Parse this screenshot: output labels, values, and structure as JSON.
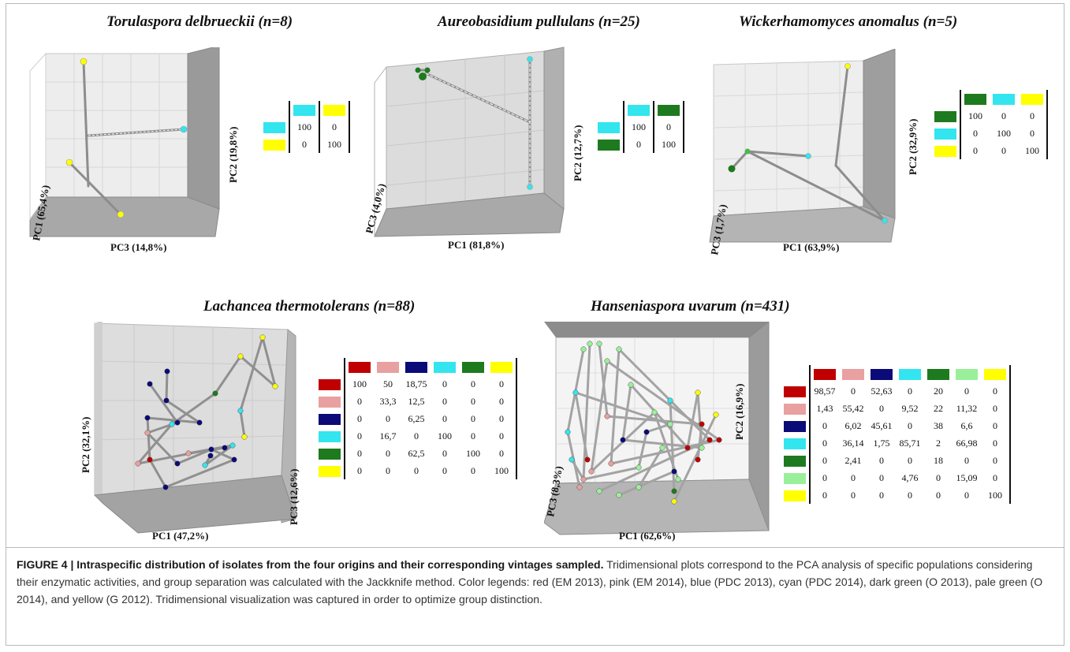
{
  "colors": {
    "red": "#c00000",
    "pink": "#e8a0a0",
    "blue": "#0a0a78",
    "cyan": "#33e5ee",
    "dark_green": "#1e7a1e",
    "pale_green": "#9af09a",
    "yellow": "#ffff00"
  },
  "panels": [
    {
      "title": "Torulaspora delbrueckii (n=8)",
      "axes": [
        "PC1 (65,4%)",
        "PC3 (14,8%)",
        "PC2 (19,8%)"
      ],
      "table": {
        "colors": [
          "cyan",
          "yellow"
        ],
        "rows": [
          [
            "100",
            "0"
          ],
          [
            "0",
            "100"
          ]
        ]
      }
    },
    {
      "title": "Aureobasidium pullulans (n=25)",
      "axes": [
        "PC3 (4,0%)",
        "PC1 (81,8%)",
        "PC2 (12,7%)"
      ],
      "table": {
        "colors": [
          "cyan",
          "dark_green"
        ],
        "rows": [
          [
            "100",
            "0"
          ],
          [
            "0",
            "100"
          ]
        ]
      }
    },
    {
      "title": "Wickerhamomyces anomalus (n=5)",
      "axes": [
        "PC3 (1,7%)",
        "PC1 (63,9%)",
        "PC2 (32,9%)"
      ],
      "table": {
        "colors": [
          "dark_green",
          "cyan",
          "yellow"
        ],
        "rows": [
          [
            "100",
            "0",
            "0"
          ],
          [
            "0",
            "100",
            "0"
          ],
          [
            "0",
            "0",
            "100"
          ]
        ]
      }
    },
    {
      "title": "Lachancea thermotolerans (n=88)",
      "axes": [
        "PC2 (32,1%)",
        "PC1 (47,2%)",
        "PC3 (12,6%)"
      ],
      "table": {
        "colors": [
          "red",
          "pink",
          "blue",
          "cyan",
          "dark_green",
          "yellow"
        ],
        "rows": [
          [
            "100",
            "50",
            "18,75",
            "0",
            "0",
            "0"
          ],
          [
            "0",
            "33,3",
            "12,5",
            "0",
            "0",
            "0"
          ],
          [
            "0",
            "0",
            "6,25",
            "0",
            "0",
            "0"
          ],
          [
            "0",
            "16,7",
            "0",
            "100",
            "0",
            "0"
          ],
          [
            "0",
            "0",
            "62,5",
            "0",
            "100",
            "0"
          ],
          [
            "0",
            "0",
            "0",
            "0",
            "0",
            "100"
          ]
        ]
      }
    },
    {
      "title": "Hanseniaspora uvarum (n=431)",
      "axes": [
        "PC3 (8,3%)",
        "PC1 (62,6%)",
        "PC2 (16,9%)"
      ],
      "table": {
        "colors": [
          "red",
          "pink",
          "blue",
          "cyan",
          "dark_green",
          "pale_green",
          "yellow"
        ],
        "rows": [
          [
            "98,57",
            "0",
            "52,63",
            "0",
            "20",
            "0",
            "0"
          ],
          [
            "1,43",
            "55,42",
            "0",
            "9,52",
            "22",
            "11,32",
            "0"
          ],
          [
            "0",
            "6,02",
            "45,61",
            "0",
            "38",
            "6,6",
            "0"
          ],
          [
            "0",
            "36,14",
            "1,75",
            "85,71",
            "2",
            "66,98",
            "0"
          ],
          [
            "0",
            "2,41",
            "0",
            "0",
            "18",
            "0",
            "0"
          ],
          [
            "0",
            "0",
            "0",
            "4,76",
            "0",
            "15,09",
            "0"
          ],
          [
            "0",
            "0",
            "0",
            "0",
            "0",
            "0",
            "100"
          ]
        ]
      }
    }
  ],
  "caption": {
    "label": "FIGURE 4 | Intraspecific distribution of isolates from the four origins and their corresponding vintages sampled.",
    "text": " Tridimensional plots correspond to the PCA analysis of specific populations considering their enzymatic activities, and group separation was calculated with the Jackknife method. Color legends: red (EM 2013), pink (EM 2014), blue (PDC 2013), cyan (PDC 2014), dark green (O 2013), pale green (O 2014), and yellow (G 2012). Tridimensional visualization was captured in order to optimize group distinction."
  }
}
